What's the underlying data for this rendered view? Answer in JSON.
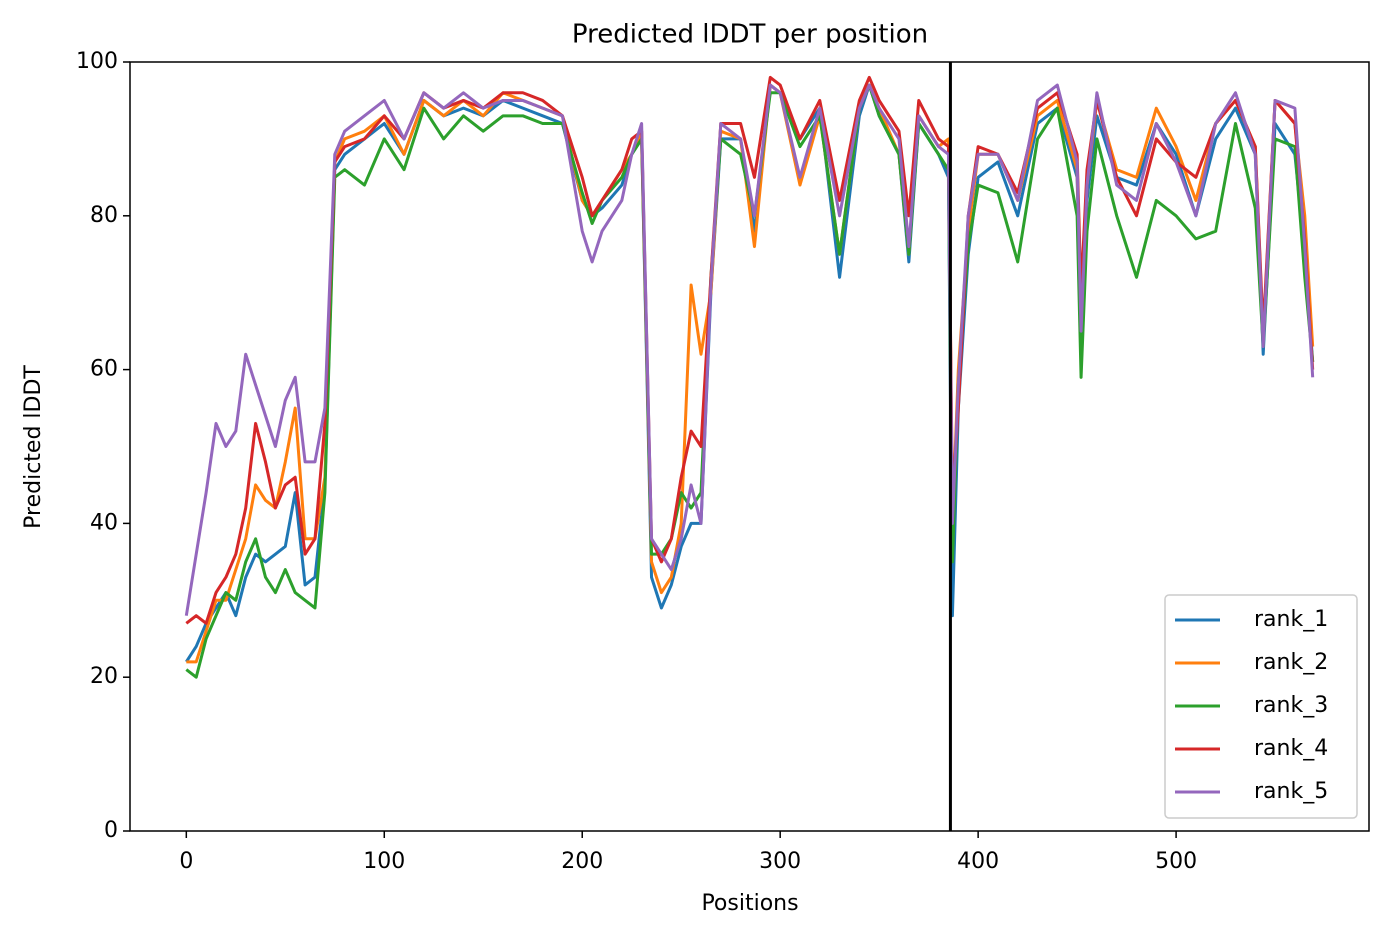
{
  "chart_data": {
    "type": "line",
    "title": "Predicted lDDT per position",
    "xlabel": "Positions",
    "ylabel": "Predicted lDDT",
    "x": [
      0,
      5,
      10,
      15,
      20,
      25,
      30,
      35,
      40,
      45,
      50,
      55,
      60,
      65,
      70,
      75,
      80,
      90,
      100,
      110,
      120,
      130,
      140,
      150,
      160,
      170,
      180,
      190,
      200,
      205,
      210,
      220,
      225,
      230,
      235,
      240,
      245,
      250,
      255,
      260,
      265,
      270,
      280,
      287,
      295,
      300,
      310,
      320,
      330,
      340,
      345,
      350,
      360,
      365,
      370,
      380,
      385,
      387,
      390,
      395,
      400,
      410,
      420,
      430,
      440,
      450,
      452,
      455,
      460,
      470,
      480,
      490,
      500,
      510,
      520,
      530,
      540,
      544,
      550,
      560,
      565,
      569
    ],
    "series": [
      {
        "name": "rank_1",
        "color": "#1f77b4",
        "values": [
          22,
          24,
          27,
          29,
          31,
          28,
          33,
          36,
          35,
          36,
          37,
          44,
          32,
          33,
          45,
          86,
          88,
          90,
          92,
          88,
          95,
          93,
          94,
          93,
          95,
          94,
          93,
          92,
          82,
          80,
          81,
          84,
          88,
          90,
          33,
          29,
          32,
          37,
          40,
          40,
          70,
          90,
          90,
          78,
          97,
          96,
          90,
          94,
          72,
          93,
          97,
          93,
          88,
          74,
          92,
          88,
          85,
          28,
          55,
          75,
          85,
          87,
          80,
          92,
          94,
          85,
          65,
          82,
          93,
          85,
          84,
          92,
          88,
          80,
          90,
          94,
          88,
          62,
          92,
          88,
          75,
          61
        ]
      },
      {
        "name": "rank_2",
        "color": "#ff7f0e",
        "values": [
          22,
          22,
          26,
          30,
          30,
          34,
          38,
          45,
          43,
          42,
          48,
          55,
          38,
          38,
          46,
          87,
          90,
          91,
          93,
          88,
          95,
          93,
          95,
          93,
          96,
          95,
          94,
          93,
          82,
          80,
          82,
          86,
          88,
          91,
          35,
          31,
          33,
          40,
          71,
          62,
          70,
          91,
          90,
          76,
          97,
          96,
          84,
          93,
          75,
          94,
          97,
          94,
          88,
          75,
          93,
          89,
          90,
          40,
          60,
          78,
          88,
          88,
          82,
          93,
          95,
          86,
          66,
          84,
          95,
          86,
          85,
          94,
          89,
          82,
          92,
          95,
          89,
          64,
          95,
          92,
          80,
          63
        ]
      },
      {
        "name": "rank_3",
        "color": "#2ca02c",
        "values": [
          21,
          20,
          25,
          28,
          31,
          30,
          35,
          38,
          33,
          31,
          34,
          31,
          30,
          29,
          44,
          85,
          86,
          84,
          90,
          86,
          94,
          90,
          93,
          91,
          93,
          93,
          92,
          92,
          83,
          79,
          82,
          85,
          88,
          90,
          36,
          36,
          38,
          44,
          42,
          44,
          72,
          90,
          88,
          80,
          96,
          96,
          89,
          93,
          75,
          94,
          97,
          93,
          88,
          75,
          92,
          88,
          86,
          35,
          58,
          76,
          84,
          83,
          74,
          90,
          94,
          80,
          59,
          78,
          90,
          80,
          72,
          82,
          80,
          77,
          78,
          92,
          81,
          63,
          90,
          89,
          72,
          61
        ]
      },
      {
        "name": "rank_4",
        "color": "#d62728",
        "values": [
          27,
          28,
          27,
          31,
          33,
          36,
          42,
          53,
          48,
          42,
          45,
          46,
          36,
          38,
          53,
          87,
          89,
          90,
          93,
          90,
          96,
          94,
          95,
          94,
          96,
          96,
          95,
          93,
          85,
          80,
          82,
          86,
          90,
          91,
          38,
          35,
          38,
          46,
          52,
          50,
          72,
          92,
          92,
          85,
          98,
          97,
          90,
          95,
          82,
          95,
          98,
          95,
          91,
          80,
          95,
          90,
          89,
          43,
          55,
          80,
          89,
          88,
          83,
          94,
          96,
          88,
          70,
          86,
          95,
          85,
          80,
          90,
          87,
          85,
          92,
          95,
          89,
          65,
          95,
          92,
          77,
          60
        ]
      },
      {
        "name": "rank_5",
        "color": "#9467bd",
        "values": [
          28,
          36,
          44,
          53,
          50,
          52,
          62,
          58,
          54,
          50,
          56,
          59,
          48,
          48,
          55,
          88,
          91,
          93,
          95,
          90,
          96,
          94,
          96,
          94,
          95,
          95,
          94,
          93,
          78,
          74,
          78,
          82,
          88,
          92,
          38,
          36,
          34,
          38,
          45,
          40,
          71,
          92,
          90,
          80,
          97,
          96,
          85,
          94,
          80,
          94,
          97,
          94,
          90,
          76,
          93,
          89,
          88,
          40,
          58,
          80,
          88,
          88,
          82,
          95,
          97,
          87,
          65,
          84,
          96,
          84,
          82,
          92,
          87,
          80,
          92,
          96,
          88,
          63,
          95,
          94,
          76,
          59
        ]
      }
    ],
    "vlines": [
      386
    ],
    "xlim": [
      -28.45,
      597.45
    ],
    "xticks": [
      0,
      100,
      200,
      300,
      400,
      500
    ],
    "ylim": [
      0,
      100
    ],
    "yticks": [
      0,
      20,
      40,
      60,
      80,
      100
    ],
    "legend": "lower right"
  }
}
